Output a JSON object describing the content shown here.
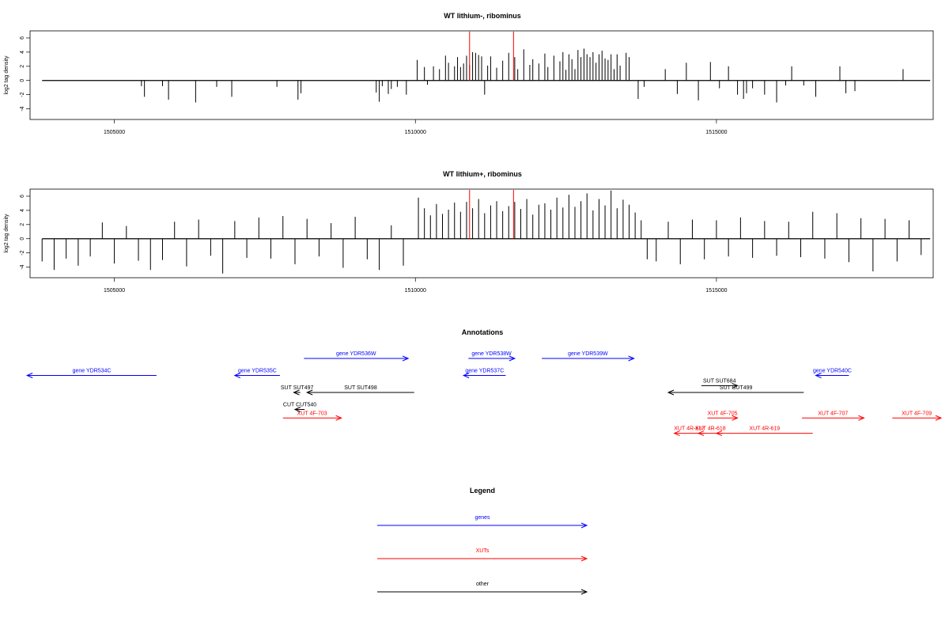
{
  "chart_data": [
    {
      "type": "bar",
      "title": "WT lithium-, ribominus",
      "xlabel": "",
      "ylabel": "log2 tag density",
      "xlim": [
        1503600,
        1518600
      ],
      "ylim": [
        -5.5,
        7
      ],
      "yticks": [
        -4,
        -2,
        0,
        2,
        4,
        6
      ],
      "xticks": [
        1505000,
        1510000,
        1515000
      ],
      "xtick_labels": [
        "1505000",
        "1510000",
        "1515000"
      ],
      "marker_lines": {
        "positions": [
          1510900,
          1511630
        ],
        "color": "#ff0000"
      },
      "bar_color": "#000000",
      "bars": {
        "x": [
          1505450,
          1505500,
          1505800,
          1505900,
          1506350,
          1506700,
          1506950,
          1507700,
          1508050,
          1508100,
          1509350,
          1509400,
          1509450,
          1509550,
          1509600,
          1509700,
          1509850,
          1510030,
          1510150,
          1510200,
          1510300,
          1510400,
          1510500,
          1510550,
          1510650,
          1510700,
          1510750,
          1510800,
          1510850,
          1510900,
          1510950,
          1511000,
          1511050,
          1511100,
          1511150,
          1511200,
          1511250,
          1511350,
          1511450,
          1511550,
          1511650,
          1511700,
          1511800,
          1511900,
          1511950,
          1512050,
          1512150,
          1512200,
          1512300,
          1512400,
          1512450,
          1512500,
          1512550,
          1512600,
          1512650,
          1512700,
          1512750,
          1512800,
          1512850,
          1512900,
          1512950,
          1513000,
          1513050,
          1513100,
          1513150,
          1513200,
          1513250,
          1513300,
          1513350,
          1513400,
          1513500,
          1513550,
          1513700,
          1513800,
          1514150,
          1514350,
          1514500,
          1514700,
          1514900,
          1515050,
          1515200,
          1515350,
          1515450,
          1515500,
          1515600,
          1515800,
          1516000,
          1516150,
          1516250,
          1516450,
          1516650,
          1517050,
          1517150,
          1517300,
          1518100
        ],
        "y": [
          -0.8,
          -2.3,
          -0.8,
          -2.7,
          -3.1,
          -0.9,
          -2.3,
          -0.9,
          -2.7,
          -1.8,
          -1.7,
          -3.0,
          -0.8,
          -1.9,
          -1.2,
          -0.9,
          -2.0,
          2.9,
          1.9,
          -0.6,
          2.0,
          1.6,
          3.5,
          2.5,
          2.0,
          3.3,
          1.9,
          2.4,
          3.5,
          2.2,
          4.0,
          3.9,
          3.6,
          3.4,
          -2.0,
          2.1,
          3.4,
          1.8,
          2.8,
          3.9,
          3.3,
          1.6,
          4.4,
          2.2,
          3.0,
          2.4,
          3.8,
          1.9,
          3.5,
          2.7,
          4.0,
          1.5,
          3.7,
          3.0,
          1.6,
          4.3,
          3.3,
          4.5,
          3.7,
          3.3,
          4.0,
          2.5,
          3.7,
          4.2,
          3.1,
          2.9,
          3.7,
          1.6,
          3.7,
          2.1,
          3.9,
          3.3,
          -2.6,
          -0.9,
          1.6,
          -1.9,
          2.5,
          -2.8,
          2.6,
          -1.1,
          2.0,
          -2.0,
          -2.6,
          -1.8,
          -1.1,
          -2.0,
          -3.1,
          -0.7,
          2.0,
          -0.7,
          -2.3,
          2.0,
          -1.8,
          -1.5,
          1.6
        ]
      }
    },
    {
      "type": "bar",
      "title": "WT lithium+, ribominus",
      "xlabel": "",
      "ylabel": "log2 tag density",
      "xlim": [
        1503600,
        1518600
      ],
      "ylim": [
        -5.5,
        7
      ],
      "yticks": [
        -4,
        -2,
        0,
        2,
        4,
        6
      ],
      "xticks": [
        1505000,
        1510000,
        1515000
      ],
      "xtick_labels": [
        "1505000",
        "1510000",
        "1515000"
      ],
      "marker_lines": {
        "positions": [
          1510900,
          1511630
        ],
        "color": "#ff0000"
      },
      "bar_color": "#000000",
      "bars": {
        "x": [
          1503800,
          1504000,
          1504200,
          1504400,
          1504600,
          1504800,
          1505000,
          1505200,
          1505400,
          1505600,
          1505800,
          1506000,
          1506200,
          1506400,
          1506600,
          1506800,
          1507000,
          1507200,
          1507400,
          1507600,
          1507800,
          1508000,
          1508200,
          1508400,
          1508600,
          1508800,
          1509000,
          1509200,
          1509400,
          1509600,
          1509800,
          1510050,
          1510150,
          1510250,
          1510350,
          1510450,
          1510550,
          1510650,
          1510750,
          1510850,
          1510950,
          1511050,
          1511150,
          1511250,
          1511350,
          1511450,
          1511550,
          1511650,
          1511750,
          1511850,
          1511950,
          1512050,
          1512150,
          1512250,
          1512350,
          1512450,
          1512550,
          1512650,
          1512750,
          1512850,
          1512950,
          1513050,
          1513150,
          1513250,
          1513350,
          1513450,
          1513550,
          1513650,
          1513750,
          1513850,
          1514000,
          1514200,
          1514400,
          1514600,
          1514800,
          1515000,
          1515200,
          1515400,
          1515600,
          1515800,
          1516000,
          1516200,
          1516400,
          1516600,
          1516800,
          1517000,
          1517200,
          1517400,
          1517600,
          1517800,
          1518000,
          1518200,
          1518400
        ],
        "y": [
          -3.2,
          -4.4,
          -2.8,
          -3.8,
          -2.5,
          2.3,
          -3.5,
          1.8,
          -3.1,
          -4.4,
          -3.0,
          2.4,
          -3.9,
          2.7,
          -2.4,
          -4.9,
          2.5,
          -2.7,
          3.0,
          -2.8,
          3.2,
          -3.6,
          2.8,
          -2.5,
          2.2,
          -4.1,
          3.1,
          -2.9,
          -4.4,
          1.9,
          -3.8,
          5.8,
          4.3,
          3.3,
          4.9,
          3.5,
          4.1,
          5.1,
          3.8,
          5.2,
          4.3,
          5.6,
          3.6,
          4.7,
          5.3,
          3.9,
          4.6,
          5.2,
          4.2,
          5.6,
          3.4,
          4.8,
          5.0,
          4.1,
          5.8,
          4.4,
          6.2,
          4.5,
          5.3,
          6.4,
          4.0,
          5.6,
          4.7,
          6.8,
          4.3,
          5.5,
          4.8,
          3.7,
          2.6,
          -2.9,
          -3.2,
          2.4,
          -3.6,
          2.7,
          -2.9,
          2.6,
          -2.5,
          3.0,
          -2.7,
          2.5,
          -2.4,
          2.4,
          -2.6,
          3.8,
          -2.8,
          3.6,
          -3.3,
          2.9,
          -4.6,
          2.8,
          -3.2,
          2.6,
          -2.3
        ]
      }
    },
    {
      "type": "annotation-track",
      "title": "Annotations",
      "features": [
        {
          "label": "gene YDR534C",
          "cat": "gene",
          "strand": "-",
          "start": 1503550,
          "end": 1505700,
          "row": 1
        },
        {
          "label": "gene YDR535C",
          "cat": "gene",
          "strand": "-",
          "start": 1507000,
          "end": 1507750,
          "row": 1
        },
        {
          "label": "gene YDR536W",
          "cat": "gene",
          "strand": "+",
          "start": 1508150,
          "end": 1509880,
          "row": 0
        },
        {
          "label": "gene YDR538W",
          "cat": "gene",
          "strand": "+",
          "start": 1510880,
          "end": 1511650,
          "row": 0
        },
        {
          "label": "gene YDR537C",
          "cat": "gene",
          "strand": "-",
          "start": 1510800,
          "end": 1511500,
          "row": 1
        },
        {
          "label": "gene YDR539W",
          "cat": "gene",
          "strand": "+",
          "start": 1512100,
          "end": 1513630,
          "row": 0
        },
        {
          "label": "gene YDR540C",
          "cat": "gene",
          "strand": "-",
          "start": 1516650,
          "end": 1517200,
          "row": 1
        },
        {
          "label": "SUT SUT497",
          "cat": "other",
          "strand": "-",
          "start": 1507980,
          "end": 1508090,
          "row": 2
        },
        {
          "label": "SUT SUT498",
          "cat": "other",
          "strand": "-",
          "start": 1508200,
          "end": 1509980,
          "row": 2
        },
        {
          "label": "SUT SUT684",
          "cat": "other",
          "strand": "+",
          "start": 1514750,
          "end": 1515350,
          "row": 1.6
        },
        {
          "label": "SUT SUT499",
          "cat": "other",
          "strand": "-",
          "start": 1514200,
          "end": 1516450,
          "row": 2
        },
        {
          "label": "CUT CUT540",
          "cat": "other",
          "strand": "-",
          "start": 1508000,
          "end": 1508160,
          "row": 3
        },
        {
          "label": "XUT 4F-703",
          "cat": "XUT",
          "strand": "+",
          "start": 1507800,
          "end": 1508770,
          "row": 3.5
        },
        {
          "label": "XUT 4F-705",
          "cat": "XUT",
          "strand": "+",
          "start": 1514850,
          "end": 1515350,
          "row": 3.5
        },
        {
          "label": "XUT 4F-707",
          "cat": "XUT",
          "strand": "+",
          "start": 1516420,
          "end": 1517450,
          "row": 3.5
        },
        {
          "label": "XUT 4F-709",
          "cat": "XUT",
          "strand": "+",
          "start": 1517920,
          "end": 1518900,
          "row": 3.5
        },
        {
          "label": "XUT 4R-617",
          "cat": "XUT",
          "strand": "-",
          "start": 1514300,
          "end": 1514800,
          "row": 4.4
        },
        {
          "label": "XUT 4R-618",
          "cat": "XUT",
          "strand": "-",
          "start": 1514700,
          "end": 1515100,
          "row": 4.4
        },
        {
          "label": "XUT 4R-619",
          "cat": "XUT",
          "strand": "-",
          "start": 1515000,
          "end": 1516600,
          "row": 4.4
        }
      ]
    },
    {
      "type": "legend",
      "title": "Legend",
      "entries": [
        {
          "label": "genes",
          "color": "#0000ff"
        },
        {
          "label": "XUTs",
          "color": "#ff0000"
        },
        {
          "label": "other",
          "color": "#000000"
        }
      ]
    }
  ],
  "colors": {
    "gene": "#0000ff",
    "XUT": "#ff0000",
    "other": "#000000",
    "marker": "#ff0000"
  }
}
